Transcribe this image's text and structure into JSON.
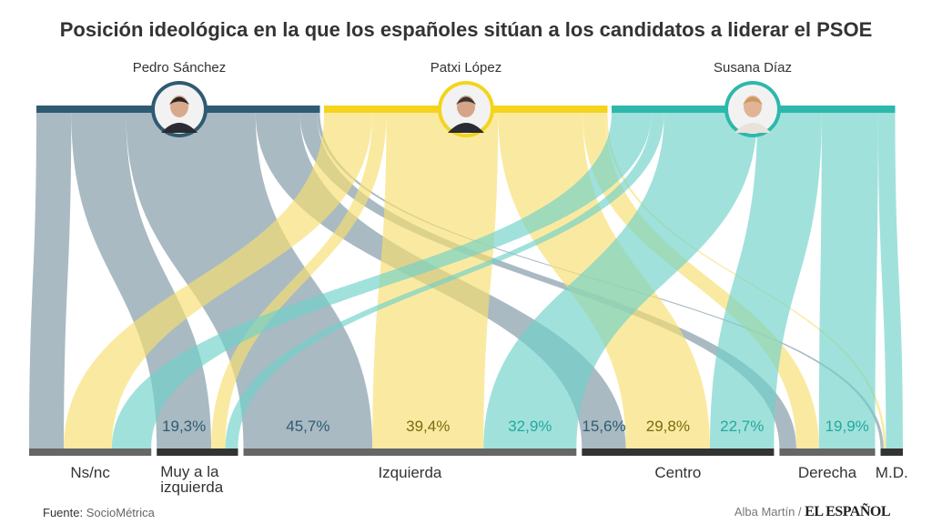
{
  "title": "Posición ideológica en la que los españoles sitúan a los candidatos a liderar el PSOE",
  "colors": {
    "band": [
      "#2f5b72",
      "#f4d41c",
      "#2db8ac"
    ],
    "flow": [
      "#7b95a3",
      "#f7df6e",
      "#6fd1c9"
    ],
    "label": [
      "#2f5b72",
      "#7a6a10",
      "#23a99c"
    ],
    "category_bar": [
      "#666666",
      "#333333"
    ]
  },
  "categories": [
    "Ns/nc",
    "Muy a la izquierda",
    "Izquierda",
    "Centro",
    "Derecha",
    "M.D."
  ],
  "candidates": [
    {
      "name": "Pedro Sánchez",
      "photo_icon": "pedro-sanchez-photo",
      "values": [
        12.3,
        19.3,
        45.7,
        15.6,
        6.0,
        1.1
      ],
      "labels": [
        "",
        "19,3%",
        "45,7%",
        "15,6%",
        "",
        ""
      ]
    },
    {
      "name": "Patxi López",
      "photo_icon": "patxi-lopez-photo",
      "values": [
        17.0,
        5.0,
        39.4,
        29.8,
        8.0,
        0.8
      ],
      "labels": [
        "",
        "",
        "39,4%",
        "29,8%",
        "",
        ""
      ]
    },
    {
      "name": "Susana Díaz",
      "photo_icon": "susana-diaz-photo",
      "values": [
        14.0,
        4.5,
        32.9,
        22.7,
        19.9,
        6.0
      ],
      "labels": [
        "",
        "",
        "32,9%",
        "22,7%",
        "19,9%",
        ""
      ]
    }
  ],
  "footer": {
    "source_label": "Fuente:",
    "source_value": "SocioMétrica",
    "author": "Alba Martín /",
    "brand": "EL ESPAÑOL"
  }
}
